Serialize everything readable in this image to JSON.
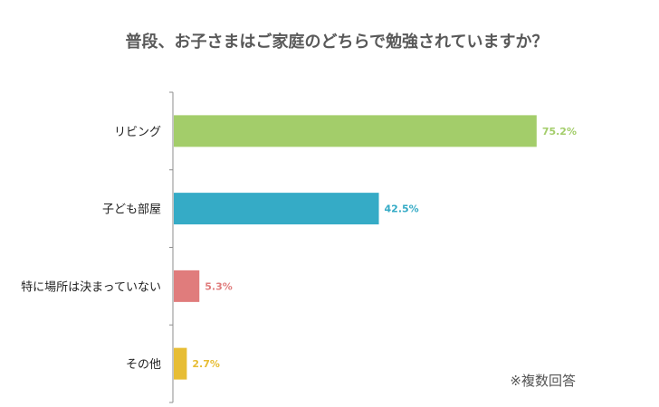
{
  "chart_data": {
    "type": "bar",
    "orientation": "horizontal",
    "title": "普段、お子さまはご家庭のどちらで勉強されていますか？",
    "categories": [
      "リビング",
      "子ども部屋",
      "特に場所は決まっていない",
      "その他"
    ],
    "values": [
      75.2,
      42.5,
      5.3,
      2.7
    ],
    "value_labels": [
      "75.2%",
      "42.5%",
      "5.3%",
      "2.7%"
    ],
    "colors": [
      "#a3cd6a",
      "#35abc6",
      "#e07c7c",
      "#e7bd34"
    ],
    "xlim": [
      0,
      100
    ],
    "xlabel": "",
    "ylabel": "",
    "grid": false,
    "legend": "none",
    "note": "※複数回答"
  }
}
